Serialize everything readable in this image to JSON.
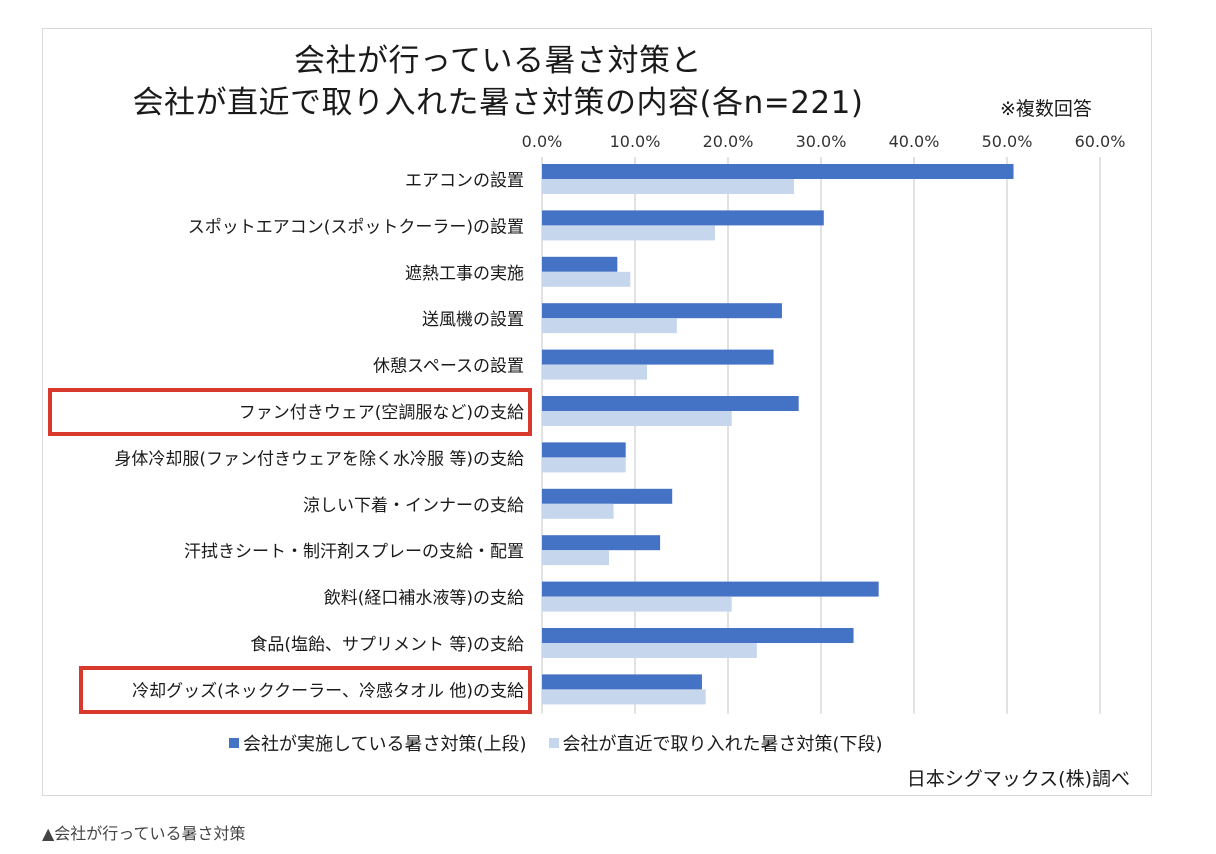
{
  "caption": "▲会社が行っている暑さ対策",
  "chart_data": {
    "type": "bar",
    "orientation": "horizontal",
    "title": "会社が行っている暑さ対策と",
    "subtitle": "会社が直近で取り入れた暑さ対策の内容(各n=221)",
    "note": "※複数回答",
    "source": "日本シグマックス(株)調べ",
    "xlim": [
      0,
      60
    ],
    "xticks": [
      "0.0%",
      "10.0%",
      "20.0%",
      "30.0%",
      "40.0%",
      "50.0%",
      "60.0%"
    ],
    "categories": [
      "エアコンの設置",
      "スポットエアコン(スポットクーラー)の設置",
      "遮熱工事の実施",
      "送風機の設置",
      "休憩スペースの設置",
      "ファン付きウェア(空調服など)の支給",
      "身体冷却服(ファン付きウェアを除く水冷服 等)の支給",
      "涼しい下着・インナーの支給",
      "汗拭きシート・制汗剤スプレーの支給・配置",
      "飲料(経口補水液等)の支給",
      "食品(塩飴、サプリメント 等)の支給",
      "冷却グッズ(ネッククーラー、冷感タオル 他)の支給"
    ],
    "series": [
      {
        "name": "会社が実施している暑さ対策(上段)",
        "color": "#4472c4",
        "values": [
          50.7,
          30.3,
          8.1,
          25.8,
          24.9,
          27.6,
          9.0,
          14.0,
          12.7,
          36.2,
          33.5,
          17.2
        ]
      },
      {
        "name": "会社が直近で取り入れた暑さ対策(下段)",
        "color": "#c5d6ed",
        "values": [
          27.1,
          18.6,
          9.5,
          14.5,
          11.3,
          20.4,
          9.0,
          7.7,
          7.2,
          20.4,
          23.1,
          17.6
        ]
      }
    ],
    "highlighted_categories": [
      "ファン付きウェア(空調服など)の支給",
      "冷却グッズ(ネッククーラー、冷感タオル 他)の支給"
    ],
    "highlight_color": "#d9382c",
    "grid": true,
    "legend": "bottom"
  }
}
